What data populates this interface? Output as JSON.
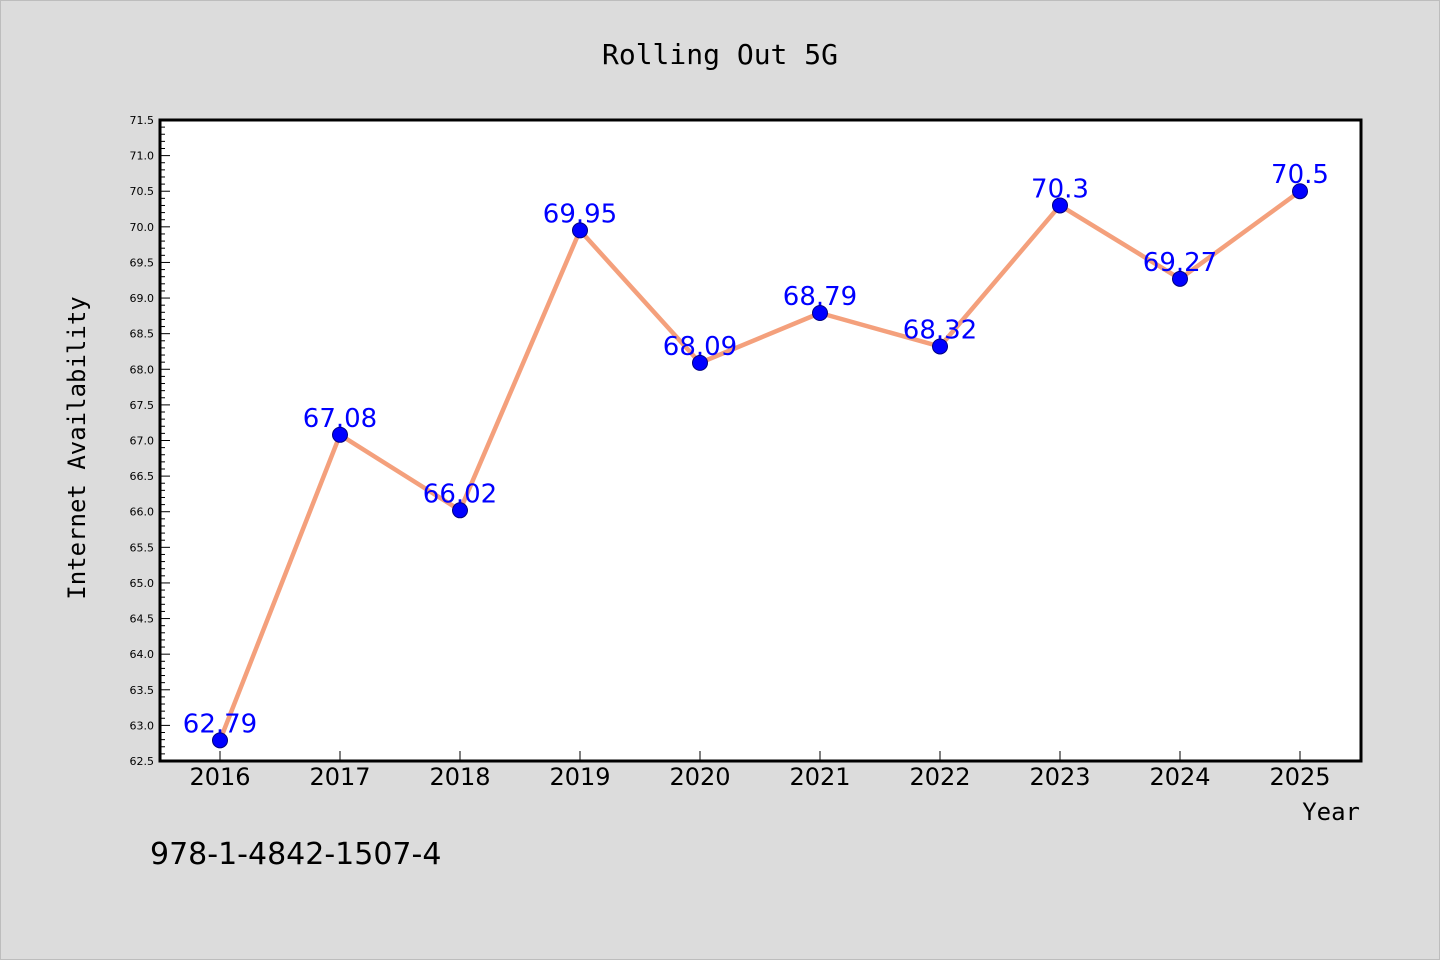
{
  "chart_data": {
    "type": "line",
    "title": "Rolling Out 5G",
    "xlabel": "Year",
    "ylabel": "Internet Availability",
    "x": [
      "2016",
      "2017",
      "2018",
      "2019",
      "2020",
      "2021",
      "2022",
      "2023",
      "2024",
      "2025"
    ],
    "series": [
      {
        "values": [
          62.79,
          67.08,
          66.02,
          69.95,
          68.09,
          68.79,
          68.32,
          70.3,
          69.27,
          70.5
        ],
        "labels": [
          "62.79",
          "67.08",
          "66.02",
          "69.95",
          "68.09",
          "68.79",
          "68.32",
          "70.3",
          "69.27",
          "70.5"
        ],
        "line_color": "#f4a07c",
        "marker_color": "#0000ff",
        "label_color": "#0000ff"
      }
    ],
    "ylim": [
      62.5,
      71.5
    ],
    "yticks": [
      "62.5",
      "63.0",
      "63.5",
      "64.0",
      "64.5",
      "65.0",
      "65.5",
      "66.0",
      "66.5",
      "67.0",
      "67.5",
      "68.0",
      "68.5",
      "69.0",
      "69.5",
      "70.0",
      "70.5",
      "71.0",
      "71.5"
    ],
    "grid": false,
    "legend": "none"
  },
  "annotation": "978-1-4842-1507-4",
  "colors": {
    "background": "#dcdcdc",
    "plot_background": "#ffffff"
  }
}
